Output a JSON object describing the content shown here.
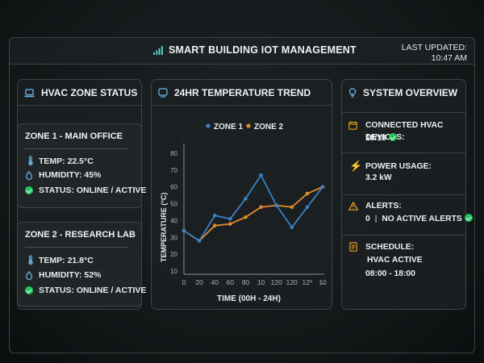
{
  "header": {
    "title": "SMART BUILDING IOT MANAGEMENT",
    "last_updated_label": "LAST UPDATED:",
    "last_updated_time": "10:47 AM"
  },
  "hvac": {
    "title": "HVAC ZONE STATUS",
    "zones": [
      {
        "name": "ZONE 1 - MAIN OFFICE",
        "temp": "TEMP: 22.5°C",
        "humidity": "HUMIDITY: 45%",
        "status": "STATUS: ONLINE / ACTIVE"
      },
      {
        "name": "ZONE 2 - RESEARCH LAB",
        "temp": "TEMP: 21.8°C",
        "humidity": "HUMIDITY: 52%",
        "status": "STATUS: ONLINE / ACTIVE"
      }
    ]
  },
  "trend": {
    "title": "24HR TEMPERATURE TREND"
  },
  "overview": {
    "title": "SYSTEM OVERVIEW",
    "devices_label": "CONNECTED HVAC DEVICES:",
    "devices_value": "18/18",
    "power_label": "POWER USAGE:",
    "power_value": "3.2 kW",
    "alerts_label": "ALERTS:",
    "alerts_count": "0",
    "alerts_text": "NO ACTIVE ALERTS",
    "schedule_label": "SCHEDULE:",
    "schedule_status": "HVAC ACTIVE",
    "schedule_hours": "08:00 - 18:00"
  },
  "colors": {
    "zone1": "#3b82c4",
    "zone2": "#e08a2c",
    "ok": "#22c55e",
    "warn": "#f2a51a"
  },
  "chart_data": {
    "type": "line",
    "xlabel": "TIME (00H - 24H)",
    "ylabel": "TEMPERATURE (°C)",
    "x_tick_labels": [
      "0",
      "20",
      "40",
      "60",
      "80",
      "10",
      "120",
      "120",
      "12⁰",
      "1̶0"
    ],
    "y_tick_labels": [
      "10",
      "20",
      "30",
      "40",
      "50",
      "60",
      "70",
      "80"
    ],
    "ylim": [
      10,
      80
    ],
    "series": [
      {
        "name": "ZONE 1",
        "color": "#3b82c4",
        "values": [
          34,
          28,
          43,
          41,
          53,
          67,
          49,
          36,
          48,
          60
        ]
      },
      {
        "name": "ZONE 2",
        "color": "#e08a2c",
        "values": [
          34,
          28,
          37,
          38,
          42,
          48,
          49,
          48,
          56,
          60
        ]
      }
    ],
    "legend": "top-center"
  }
}
